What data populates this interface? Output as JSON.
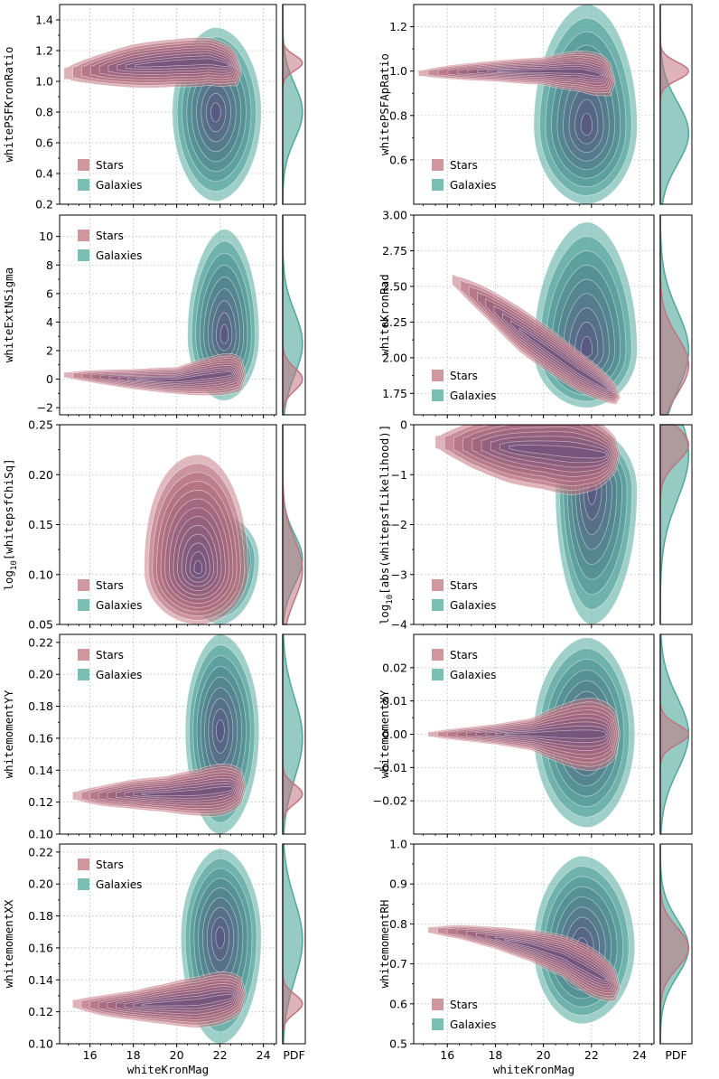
{
  "colors": {
    "stars": "#c1747f",
    "galaxies": "#4fa89a",
    "dense": "#5b4a7c",
    "grid": "#bbbbbb",
    "axis": "#000000"
  },
  "chart_data": [
    {
      "type": "contour-kde",
      "id": "psfkron",
      "xlabel": "",
      "ylabel": "whitePSFKronRatio",
      "xlim": [
        14.6,
        24.6
      ],
      "ylim": [
        0.2,
        1.5
      ],
      "yticks": [
        0.2,
        0.4,
        0.6,
        0.8,
        1.0,
        1.2,
        1.4
      ],
      "ytick_labels": [
        "0.2",
        "0.4",
        "0.6",
        "0.8",
        "1.0",
        "1.2",
        "1.4"
      ],
      "xticks": [
        16,
        18,
        20,
        22,
        24
      ],
      "xtick_labels": [],
      "legend": [
        "Stars",
        "Galaxies"
      ],
      "legend_position": "lower-left",
      "stars": {
        "x": [
          14.8,
          16,
          18,
          20,
          21.5,
          22.5,
          23.0
        ],
        "center": [
          21.0,
          1.12
        ],
        "spread_y": [
          0.06,
          0.07,
          0.09,
          0.1,
          0.12,
          0.14,
          0.16
        ],
        "center_y": [
          1.05,
          1.07,
          1.1,
          1.12,
          1.13,
          1.1,
          1.05
        ]
      },
      "galaxies": {
        "center": [
          21.8,
          0.8
        ],
        "sx": 1.0,
        "sy": 0.22,
        "xmin": 19.8,
        "xmax": 23.9,
        "ymin": 0.22,
        "ymax": 1.35
      },
      "pdf": {
        "stars_peak": 1.12,
        "stars_width": 0.05,
        "galaxies_peak": 0.8,
        "galaxies_width": 0.18
      }
    },
    {
      "type": "contour-kde",
      "id": "psfap",
      "xlabel": "",
      "ylabel": "whitePSFApRatio",
      "xlim": [
        14.6,
        24.6
      ],
      "ylim": [
        0.4,
        1.3
      ],
      "yticks": [
        0.6,
        0.8,
        1.0,
        1.2
      ],
      "ytick_labels": [
        "0.6",
        "0.8",
        "1.0",
        "1.2"
      ],
      "xticks": [
        16,
        18,
        20,
        22,
        24
      ],
      "xtick_labels": [],
      "legend": [
        "Stars",
        "Galaxies"
      ],
      "legend_position": "lower-left",
      "stars": {
        "x": [
          14.8,
          16,
          18,
          20,
          21.5,
          22.5,
          23.0
        ],
        "spread_y": [
          0.02,
          0.025,
          0.03,
          0.04,
          0.07,
          0.1,
          0.12
        ],
        "center_y": [
          0.99,
          0.995,
          1.0,
          1.0,
          1.0,
          0.98,
          0.95
        ]
      },
      "galaxies": {
        "center": [
          21.8,
          0.75
        ],
        "sx": 1.0,
        "sy": 0.18,
        "xmin": 19.6,
        "xmax": 23.9,
        "ymin": 0.4,
        "ymax": 1.3
      },
      "pdf": {
        "stars_peak": 1.0,
        "stars_width": 0.04,
        "galaxies_peak": 0.72,
        "galaxies_width": 0.14
      }
    },
    {
      "type": "contour-kde",
      "id": "extnsigma",
      "xlabel": "",
      "ylabel": "whiteExtNSigma",
      "xlim": [
        14.6,
        24.6
      ],
      "ylim": [
        -2.5,
        11.5
      ],
      "yticks": [
        -2,
        0,
        2,
        4,
        6,
        8,
        10
      ],
      "ytick_labels": [
        "−2",
        "0",
        "2",
        "4",
        "6",
        "8",
        "10"
      ],
      "xticks": [
        16,
        18,
        20,
        22,
        24
      ],
      "xtick_labels": [],
      "legend": [
        "Stars",
        "Galaxies"
      ],
      "legend_position": "upper-left",
      "stars": {
        "x": [
          14.8,
          16,
          18,
          20,
          21.5,
          22.5,
          23.2
        ],
        "spread_y": [
          0.3,
          0.35,
          0.45,
          0.6,
          1.0,
          1.4,
          1.8
        ],
        "center_y": [
          0.3,
          0.2,
          0.0,
          -0.1,
          0.2,
          0.4,
          0.3
        ]
      },
      "galaxies": {
        "center": [
          22.2,
          3.0
        ],
        "sx": 0.7,
        "sy": 2.2,
        "xmin": 20.5,
        "xmax": 23.8,
        "ymin": -1.5,
        "ymax": 10.5
      },
      "pdf": {
        "stars_peak": 0.0,
        "stars_width": 0.8,
        "galaxies_peak": 2.5,
        "galaxies_width": 2.2
      }
    },
    {
      "type": "contour-kde",
      "id": "kronrad",
      "xlabel": "",
      "ylabel": "whiteKronRad",
      "xlim": [
        14.6,
        24.6
      ],
      "ylim": [
        1.6,
        3.0
      ],
      "yticks": [
        1.75,
        2.0,
        2.25,
        2.5,
        2.75,
        3.0
      ],
      "ytick_labels": [
        "1.75",
        "2.00",
        "2.25",
        "2.50",
        "2.75",
        "3.00"
      ],
      "xticks": [
        16,
        18,
        20,
        22,
        24
      ],
      "xtick_labels": [],
      "legend": [
        "Stars",
        "Galaxies"
      ],
      "legend_position": "lower-left",
      "stars": {
        "x": [
          16.2,
          17.5,
          19,
          20.5,
          21.5,
          22.5,
          23.2
        ],
        "spread_y": [
          0.06,
          0.08,
          0.1,
          0.1,
          0.1,
          0.1,
          0.1
        ],
        "center_y": [
          2.55,
          2.4,
          2.2,
          2.02,
          1.9,
          1.8,
          1.72
        ]
      },
      "galaxies": {
        "center": [
          21.8,
          2.05
        ],
        "sx": 0.9,
        "sy": 0.32,
        "xmin": 19.6,
        "xmax": 23.9,
        "ymin": 1.65,
        "ymax": 2.95
      },
      "pdf": {
        "stars_peak": 1.95,
        "stars_width": 0.2,
        "galaxies_peak": 2.05,
        "galaxies_width": 0.28
      }
    },
    {
      "type": "contour-kde",
      "id": "chisq",
      "xlabel": "",
      "ylabel": "log10[whitepsfChiSq]",
      "ylabel_parts": [
        "log",
        "10",
        "[whitepsfChiSq]"
      ],
      "xlim": [
        14.6,
        24.6
      ],
      "ylim": [
        0.05,
        0.25
      ],
      "yticks": [
        0.05,
        0.1,
        0.15,
        0.2,
        0.25
      ],
      "ytick_labels": [
        "0.05",
        "0.10",
        "0.15",
        "0.20",
        "0.25"
      ],
      "xticks": [
        16,
        18,
        20,
        22,
        24
      ],
      "xtick_labels": [],
      "legend": [
        "Stars",
        "Galaxies"
      ],
      "legend_position": "lower-left",
      "stars": {
        "center": [
          21.0,
          0.105
        ],
        "sx": 1.2,
        "sy": 0.03,
        "xmin": 18.5,
        "xmax": 23.3,
        "ymin": 0.05,
        "ymax": 0.22
      },
      "galaxies": {
        "center": [
          22.0,
          0.115
        ],
        "sx": 0.8,
        "sy": 0.03,
        "xmin": 20.3,
        "xmax": 23.8,
        "ymin": 0.05,
        "ymax": 0.16
      },
      "pdf": {
        "stars_peak": 0.105,
        "stars_width": 0.03,
        "galaxies_peak": 0.115,
        "galaxies_width": 0.025
      }
    },
    {
      "type": "contour-kde",
      "id": "likelihood",
      "xlabel": "",
      "ylabel": "log10[abs(whitepsfLikelihood)]",
      "ylabel_parts": [
        "log",
        "10",
        "[abs(whitepsfLikelihood)]"
      ],
      "xlim": [
        14.6,
        24.6
      ],
      "ylim": [
        -4,
        0
      ],
      "yticks": [
        -4,
        -3,
        -2,
        -1,
        0
      ],
      "ytick_labels": [
        "−4",
        "−3",
        "−2",
        "−1",
        "0"
      ],
      "xticks": [
        16,
        18,
        20,
        22,
        24
      ],
      "xtick_labels": [],
      "legend": [
        "Stars",
        "Galaxies"
      ],
      "legend_position": "lower-left",
      "stars": {
        "x": [
          15.5,
          17,
          18.5,
          20,
          21.2,
          22.3,
          23.2
        ],
        "spread_y": [
          0.2,
          0.35,
          0.45,
          0.5,
          0.6,
          0.6,
          0.5
        ],
        "center_y": [
          -0.35,
          -0.4,
          -0.45,
          -0.5,
          -0.55,
          -0.6,
          -0.6
        ]
      },
      "galaxies": {
        "center": [
          22.0,
          -1.3
        ],
        "sx": 0.8,
        "sy": 0.9,
        "xmin": 20.5,
        "xmax": 23.9,
        "ymin": -4.0,
        "ymax": -0.1
      },
      "pdf": {
        "stars_peak": -0.4,
        "stars_width": 0.35,
        "galaxies_peak": -0.6,
        "galaxies_width": 0.9
      }
    },
    {
      "type": "contour-kde",
      "id": "momentyy",
      "xlabel": "",
      "ylabel": "whitemomentYY",
      "xlim": [
        14.6,
        24.6
      ],
      "ylim": [
        0.1,
        0.225
      ],
      "yticks": [
        0.1,
        0.12,
        0.14,
        0.16,
        0.18,
        0.2,
        0.22
      ],
      "ytick_labels": [
        "0.10",
        "0.12",
        "0.14",
        "0.16",
        "0.18",
        "0.20",
        "0.22"
      ],
      "xticks": [
        16,
        18,
        20,
        22,
        24
      ],
      "xtick_labels": [],
      "legend": [
        "Stars",
        "Galaxies"
      ],
      "legend_position": "upper-left",
      "stars": {
        "x": [
          15.2,
          16.5,
          18,
          19.5,
          21,
          22.2,
          23.2
        ],
        "spread_y": [
          0.004,
          0.005,
          0.006,
          0.007,
          0.01,
          0.014,
          0.016
        ],
        "center_y": [
          0.124,
          0.124,
          0.125,
          0.125,
          0.126,
          0.128,
          0.13
        ]
      },
      "galaxies": {
        "center": [
          22.0,
          0.165
        ],
        "sx": 0.8,
        "sy": 0.025,
        "xmin": 20.4,
        "xmax": 23.8,
        "ymin": 0.1,
        "ymax": 0.225
      },
      "pdf": {
        "stars_peak": 0.125,
        "stars_width": 0.006,
        "galaxies_peak": 0.16,
        "galaxies_width": 0.025
      }
    },
    {
      "type": "contour-kde",
      "id": "momentxy",
      "xlabel": "",
      "ylabel": "whitemomentXY",
      "xlim": [
        14.6,
        24.6
      ],
      "ylim": [
        -0.03,
        0.03
      ],
      "yticks": [
        -0.02,
        -0.01,
        0.0,
        0.01,
        0.02
      ],
      "ytick_labels": [
        "−0.02",
        "−0.01",
        "0.00",
        "0.01",
        "0.02"
      ],
      "xticks": [
        16,
        18,
        20,
        22,
        24
      ],
      "xtick_labels": [],
      "legend": [
        "Stars",
        "Galaxies"
      ],
      "legend_position": "upper-left",
      "stars": {
        "x": [
          15.2,
          16.5,
          18,
          19.5,
          20.8,
          22,
          23.2
        ],
        "spread_y": [
          0.0012,
          0.0015,
          0.002,
          0.003,
          0.006,
          0.009,
          0.011
        ],
        "center_y": [
          0.0,
          0.0,
          0.0,
          0.0,
          0.0,
          0.0,
          0.0
        ]
      },
      "galaxies": {
        "center": [
          21.8,
          0.0
        ],
        "sx": 0.9,
        "sy": 0.012,
        "xmin": 19.6,
        "xmax": 23.8,
        "ymin": -0.028,
        "ymax": 0.029
      },
      "pdf": {
        "stars_peak": 0.0,
        "stars_width": 0.003,
        "galaxies_peak": 0.0,
        "galaxies_width": 0.011
      }
    },
    {
      "type": "contour-kde",
      "id": "momentxx",
      "xlabel": "whiteKronMag",
      "ylabel": "whitemomentXX",
      "xlim": [
        14.6,
        24.6
      ],
      "ylim": [
        0.1,
        0.225
      ],
      "yticks": [
        0.1,
        0.12,
        0.14,
        0.16,
        0.18,
        0.2,
        0.22
      ],
      "ytick_labels": [
        "0.10",
        "0.12",
        "0.14",
        "0.16",
        "0.18",
        "0.20",
        "0.22"
      ],
      "xticks": [
        16,
        18,
        20,
        22,
        24
      ],
      "xtick_labels": [
        "16",
        "18",
        "20",
        "22",
        "24"
      ],
      "legend": [
        "Stars",
        "Galaxies"
      ],
      "legend_position": "upper-left",
      "stars": {
        "x": [
          15.2,
          16.5,
          18,
          19.5,
          21,
          22.2,
          23.2
        ],
        "spread_y": [
          0.004,
          0.005,
          0.006,
          0.008,
          0.011,
          0.014,
          0.016
        ],
        "center_y": [
          0.125,
          0.124,
          0.124,
          0.125,
          0.126,
          0.129,
          0.131
        ]
      },
      "galaxies": {
        "center": [
          22.0,
          0.167
        ],
        "sx": 0.8,
        "sy": 0.025,
        "xmin": 20.2,
        "xmax": 23.9,
        "ymin": 0.1,
        "ymax": 0.222
      },
      "pdf": {
        "stars_peak": 0.125,
        "stars_width": 0.006,
        "galaxies_peak": 0.165,
        "galaxies_width": 0.025
      }
    },
    {
      "type": "contour-kde",
      "id": "momentrh",
      "xlabel": "whiteKronMag",
      "ylabel": "whitemomentRH",
      "xlim": [
        14.6,
        24.6
      ],
      "ylim": [
        0.5,
        1.0
      ],
      "yticks": [
        0.5,
        0.6,
        0.7,
        0.8,
        0.9,
        1.0
      ],
      "ytick_labels": [
        "0.5",
        "0.6",
        "0.7",
        "0.8",
        "0.9",
        "1.0"
      ],
      "xticks": [
        16,
        18,
        20,
        22,
        24
      ],
      "xtick_labels": [
        "16",
        "18",
        "20",
        "22",
        "24"
      ],
      "legend": [
        "Stars",
        "Galaxies"
      ],
      "legend_position": "lower-left",
      "stars": {
        "x": [
          15.2,
          16.5,
          18,
          19.5,
          20.8,
          22,
          23.2
        ],
        "spread_y": [
          0.012,
          0.014,
          0.018,
          0.025,
          0.035,
          0.05,
          0.06
        ],
        "center_y": [
          0.785,
          0.78,
          0.765,
          0.745,
          0.72,
          0.68,
          0.64
        ]
      },
      "galaxies": {
        "center": [
          21.6,
          0.74
        ],
        "sx": 0.9,
        "sy": 0.09,
        "xmin": 19.6,
        "xmax": 23.8,
        "ymin": 0.55,
        "ymax": 0.97
      },
      "pdf": {
        "stars_peak": 0.74,
        "stars_width": 0.05,
        "galaxies_peak": 0.74,
        "galaxies_width": 0.07
      }
    }
  ],
  "pdf_label": "PDF"
}
